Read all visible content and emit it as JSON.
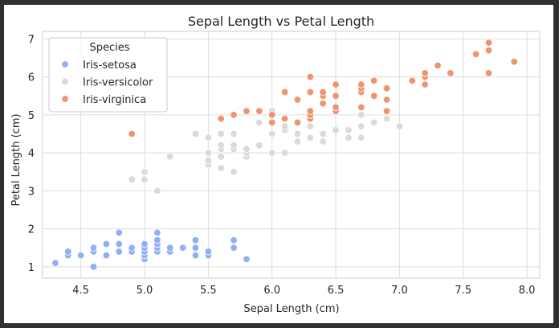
{
  "chart_data": {
    "type": "scatter",
    "title": "Sepal Length vs Petal Length",
    "xlabel": "Sepal Length (cm)",
    "ylabel": "Petal Length (cm)",
    "xlim": [
      4.2,
      8.1
    ],
    "ylim": [
      0.7,
      7.2
    ],
    "xticks": [
      4.5,
      5.0,
      5.5,
      6.0,
      6.5,
      7.0,
      7.5,
      8.0
    ],
    "xtick_labels": [
      "4.5",
      "5.0",
      "5.5",
      "6.0",
      "6.5",
      "7.0",
      "7.5",
      "8.0"
    ],
    "yticks": [
      1,
      2,
      3,
      4,
      5,
      6,
      7
    ],
    "ytick_labels": [
      "1",
      "2",
      "3",
      "4",
      "5",
      "6",
      "7"
    ],
    "grid": true,
    "legend": {
      "title": "Species",
      "placement": "top-left",
      "entries": [
        "Iris-setosa",
        "Iris-versicolor",
        "Iris-virginica"
      ]
    },
    "series": [
      {
        "name": "Iris-setosa",
        "color": "#8fb0f5",
        "points": [
          [
            4.3,
            1.1
          ],
          [
            4.4,
            1.3
          ],
          [
            4.4,
            1.4
          ],
          [
            4.5,
            1.3
          ],
          [
            4.6,
            1.0
          ],
          [
            4.6,
            1.4
          ],
          [
            4.6,
            1.5
          ],
          [
            4.7,
            1.3
          ],
          [
            4.7,
            1.6
          ],
          [
            4.8,
            1.4
          ],
          [
            4.8,
            1.6
          ],
          [
            4.8,
            1.9
          ],
          [
            4.9,
            1.4
          ],
          [
            4.9,
            1.5
          ],
          [
            5.0,
            1.2
          ],
          [
            5.0,
            1.3
          ],
          [
            5.0,
            1.4
          ],
          [
            5.0,
            1.5
          ],
          [
            5.0,
            1.6
          ],
          [
            5.1,
            1.4
          ],
          [
            5.1,
            1.5
          ],
          [
            5.1,
            1.6
          ],
          [
            5.1,
            1.7
          ],
          [
            5.1,
            1.9
          ],
          [
            5.2,
            1.4
          ],
          [
            5.2,
            1.5
          ],
          [
            5.3,
            1.5
          ],
          [
            5.4,
            1.3
          ],
          [
            5.4,
            1.5
          ],
          [
            5.4,
            1.7
          ],
          [
            5.5,
            1.3
          ],
          [
            5.5,
            1.4
          ],
          [
            5.7,
            1.5
          ],
          [
            5.7,
            1.7
          ],
          [
            5.8,
            1.2
          ]
        ]
      },
      {
        "name": "Iris-versicolor",
        "color": "#dadada",
        "points": [
          [
            4.9,
            3.3
          ],
          [
            5.0,
            3.3
          ],
          [
            5.0,
            3.5
          ],
          [
            5.1,
            3.0
          ],
          [
            5.2,
            3.9
          ],
          [
            5.4,
            4.5
          ],
          [
            5.5,
            3.7
          ],
          [
            5.5,
            3.8
          ],
          [
            5.5,
            4.0
          ],
          [
            5.5,
            4.4
          ],
          [
            5.6,
            3.6
          ],
          [
            5.6,
            3.9
          ],
          [
            5.6,
            4.1
          ],
          [
            5.6,
            4.2
          ],
          [
            5.6,
            4.5
          ],
          [
            5.7,
            3.5
          ],
          [
            5.7,
            4.1
          ],
          [
            5.7,
            4.2
          ],
          [
            5.7,
            4.5
          ],
          [
            5.8,
            3.9
          ],
          [
            5.8,
            4.0
          ],
          [
            5.8,
            4.1
          ],
          [
            5.9,
            4.2
          ],
          [
            5.9,
            4.8
          ],
          [
            6.0,
            4.0
          ],
          [
            6.0,
            4.5
          ],
          [
            6.0,
            5.1
          ],
          [
            6.1,
            4.0
          ],
          [
            6.1,
            4.6
          ],
          [
            6.1,
            4.7
          ],
          [
            6.2,
            4.3
          ],
          [
            6.2,
            4.5
          ],
          [
            6.3,
            4.4
          ],
          [
            6.3,
            4.7
          ],
          [
            6.3,
            4.9
          ],
          [
            6.4,
            4.3
          ],
          [
            6.4,
            4.5
          ],
          [
            6.5,
            4.6
          ],
          [
            6.6,
            4.4
          ],
          [
            6.6,
            4.6
          ],
          [
            6.7,
            4.4
          ],
          [
            6.7,
            4.7
          ],
          [
            6.7,
            5.0
          ],
          [
            6.8,
            4.8
          ],
          [
            6.9,
            4.9
          ],
          [
            7.0,
            4.7
          ]
        ]
      },
      {
        "name": "Iris-virginica",
        "color": "#ee9470",
        "points": [
          [
            4.9,
            4.5
          ],
          [
            5.6,
            4.9
          ],
          [
            5.7,
            5.0
          ],
          [
            5.8,
            5.1
          ],
          [
            5.9,
            5.1
          ],
          [
            6.0,
            4.8
          ],
          [
            6.0,
            5.0
          ],
          [
            6.1,
            4.9
          ],
          [
            6.1,
            5.6
          ],
          [
            6.2,
            4.8
          ],
          [
            6.2,
            5.4
          ],
          [
            6.3,
            4.9
          ],
          [
            6.3,
            5.0
          ],
          [
            6.3,
            5.1
          ],
          [
            6.3,
            5.6
          ],
          [
            6.3,
            6.0
          ],
          [
            6.4,
            5.3
          ],
          [
            6.4,
            5.5
          ],
          [
            6.4,
            5.6
          ],
          [
            6.5,
            5.1
          ],
          [
            6.5,
            5.2
          ],
          [
            6.5,
            5.5
          ],
          [
            6.5,
            5.8
          ],
          [
            6.7,
            5.2
          ],
          [
            6.7,
            5.6
          ],
          [
            6.7,
            5.7
          ],
          [
            6.7,
            5.8
          ],
          [
            6.8,
            5.5
          ],
          [
            6.8,
            5.9
          ],
          [
            6.9,
            5.1
          ],
          [
            6.9,
            5.4
          ],
          [
            6.9,
            5.7
          ],
          [
            7.1,
            5.9
          ],
          [
            7.2,
            5.8
          ],
          [
            7.2,
            6.0
          ],
          [
            7.2,
            6.1
          ],
          [
            7.3,
            6.3
          ],
          [
            7.4,
            6.1
          ],
          [
            7.6,
            6.6
          ],
          [
            7.7,
            6.1
          ],
          [
            7.7,
            6.7
          ],
          [
            7.7,
            6.9
          ],
          [
            7.9,
            6.4
          ]
        ]
      }
    ]
  }
}
